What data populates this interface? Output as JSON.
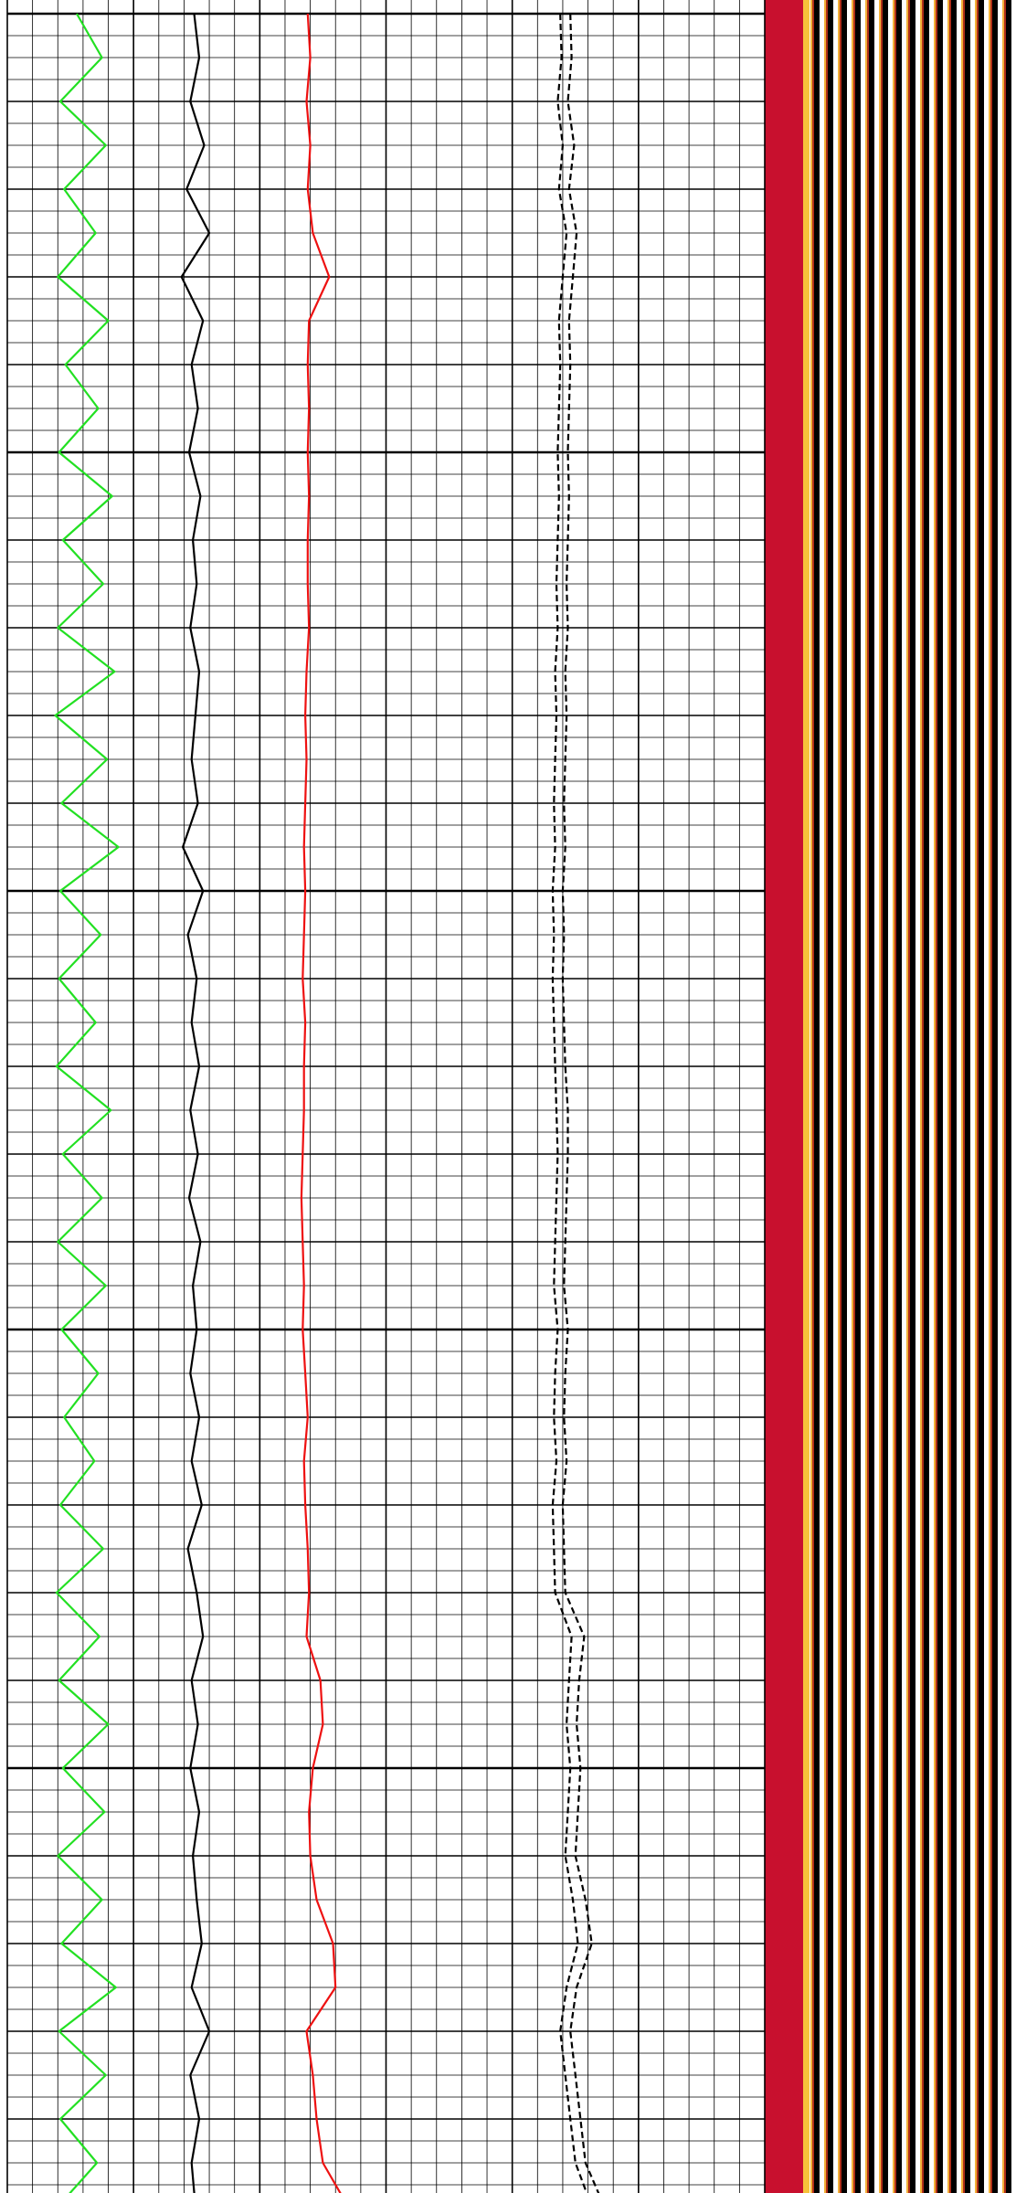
{
  "chart_data": {
    "type": "well-log",
    "xlim": [
      0,
      60
    ],
    "ylim": [
      0,
      100
    ],
    "xticks": [
      0,
      2,
      4,
      6,
      8,
      10,
      12,
      14,
      16,
      18,
      20,
      22,
      24,
      26,
      28,
      30,
      32,
      34,
      36,
      38,
      40,
      42,
      44,
      46,
      48,
      50,
      52,
      54,
      56,
      58,
      60
    ],
    "yticks": [
      0,
      1,
      2,
      3,
      4,
      5,
      6,
      7,
      8,
      9,
      10,
      11,
      12,
      13,
      14,
      15,
      16,
      17,
      18,
      19,
      20,
      21,
      22,
      23,
      24,
      25,
      26,
      27,
      28,
      29,
      30,
      31,
      32,
      33,
      34,
      35,
      36,
      37,
      38,
      39,
      40,
      41,
      42,
      43,
      44,
      45,
      46,
      47,
      48,
      49,
      50,
      51,
      52,
      53,
      54,
      55,
      56,
      57,
      58,
      59,
      60,
      61,
      62,
      63,
      64,
      65,
      66,
      67,
      68,
      69,
      70,
      71,
      72,
      73,
      74,
      75,
      76,
      77,
      78,
      79,
      80,
      81,
      82,
      83,
      84,
      85,
      86,
      87,
      88,
      89,
      90,
      91,
      92,
      93,
      94,
      95,
      96,
      97,
      98,
      99,
      100
    ],
    "grid": true,
    "y": [
      0,
      2,
      4,
      6,
      8,
      10,
      12,
      14,
      16,
      18,
      20,
      22,
      24,
      26,
      28,
      30,
      32,
      34,
      36,
      38,
      40,
      42,
      44,
      46,
      48,
      50,
      52,
      54,
      56,
      58,
      60,
      62,
      64,
      66,
      68,
      70,
      72,
      74,
      76,
      78,
      80,
      82,
      84,
      86,
      88,
      90,
      92,
      94,
      96,
      98,
      100
    ],
    "series": [
      {
        "color": "#22e022",
        "style": "solid",
        "values": [
          5.5,
          7.5,
          4.2,
          7.8,
          4.5,
          7.0,
          4.0,
          8.0,
          4.6,
          7.2,
          4.1,
          8.3,
          4.4,
          7.6,
          4.0,
          8.5,
          3.8,
          7.9,
          4.3,
          8.8,
          4.2,
          7.4,
          4.1,
          7.0,
          3.9,
          8.2,
          4.4,
          7.5,
          4.0,
          7.8,
          4.3,
          7.2,
          4.5,
          6.9,
          4.2,
          7.6,
          3.9,
          7.3,
          4.1,
          8.0,
          4.4,
          7.7,
          4.0,
          7.5,
          4.3,
          8.6,
          4.1,
          7.8,
          4.2,
          7.1,
          4.0
        ]
      },
      {
        "color": "#000000",
        "style": "solid",
        "values": [
          14.8,
          15.2,
          14.5,
          15.6,
          14.2,
          16.0,
          13.8,
          15.5,
          14.6,
          15.1,
          14.4,
          15.3,
          14.7,
          15.0,
          14.5,
          15.2,
          14.9,
          14.6,
          15.1,
          13.9,
          15.5,
          14.3,
          15.0,
          14.6,
          15.2,
          14.5,
          15.1,
          14.4,
          15.3,
          14.7,
          15.0,
          14.5,
          15.2,
          14.6,
          15.4,
          14.3,
          15.0,
          15.5,
          14.6,
          15.1,
          14.5,
          15.2,
          14.7,
          15.0,
          15.4,
          14.6,
          16.0,
          14.5,
          15.2,
          14.6,
          14.9
        ]
      },
      {
        "color": "#ee1111",
        "style": "solid",
        "values": [
          23.8,
          24.0,
          23.7,
          24.0,
          23.8,
          24.2,
          25.5,
          23.9,
          23.8,
          23.9,
          23.8,
          23.9,
          23.8,
          23.8,
          23.9,
          23.7,
          23.6,
          23.7,
          23.6,
          23.5,
          23.6,
          23.5,
          23.4,
          23.6,
          23.5,
          23.5,
          23.4,
          23.3,
          23.4,
          23.5,
          23.4,
          23.6,
          23.8,
          23.5,
          23.6,
          23.8,
          23.9,
          23.7,
          24.8,
          25.0,
          24.2,
          23.9,
          24.0,
          24.5,
          25.8,
          26.0,
          23.7,
          24.2,
          24.5,
          25.0,
          27.0
        ]
      },
      {
        "color": "#000000",
        "style": "dashed",
        "values": [
          43.8,
          43.9,
          43.6,
          44.0,
          43.7,
          44.3,
          44.0,
          43.7,
          43.8,
          43.7,
          43.6,
          43.7,
          43.6,
          43.5,
          43.6,
          43.4,
          43.5,
          43.4,
          43.3,
          43.4,
          43.2,
          43.3,
          43.2,
          43.3,
          43.4,
          43.5,
          43.6,
          43.5,
          43.4,
          43.3,
          43.6,
          43.4,
          43.3,
          43.5,
          43.2,
          43.3,
          43.4,
          44.7,
          44.5,
          44.3,
          44.6,
          44.4,
          44.2,
          44.8,
          45.2,
          44.3,
          43.8,
          44.2,
          44.6,
          45.0,
          46.3
        ]
      },
      {
        "color": "#000000",
        "style": "dashed",
        "values": [
          44.6,
          44.7,
          44.4,
          44.9,
          44.5,
          45.1,
          44.8,
          44.5,
          44.6,
          44.5,
          44.4,
          44.5,
          44.4,
          44.3,
          44.4,
          44.2,
          44.3,
          44.2,
          44.1,
          44.2,
          44.0,
          44.1,
          44.0,
          44.1,
          44.2,
          44.4,
          44.4,
          44.3,
          44.2,
          44.1,
          44.4,
          44.2,
          44.1,
          44.3,
          44.0,
          44.1,
          44.2,
          45.7,
          45.3,
          45.1,
          45.4,
          45.2,
          45.0,
          45.8,
          46.3,
          45.1,
          44.6,
          45.0,
          45.4,
          45.8,
          47.3
        ]
      }
    ]
  }
}
